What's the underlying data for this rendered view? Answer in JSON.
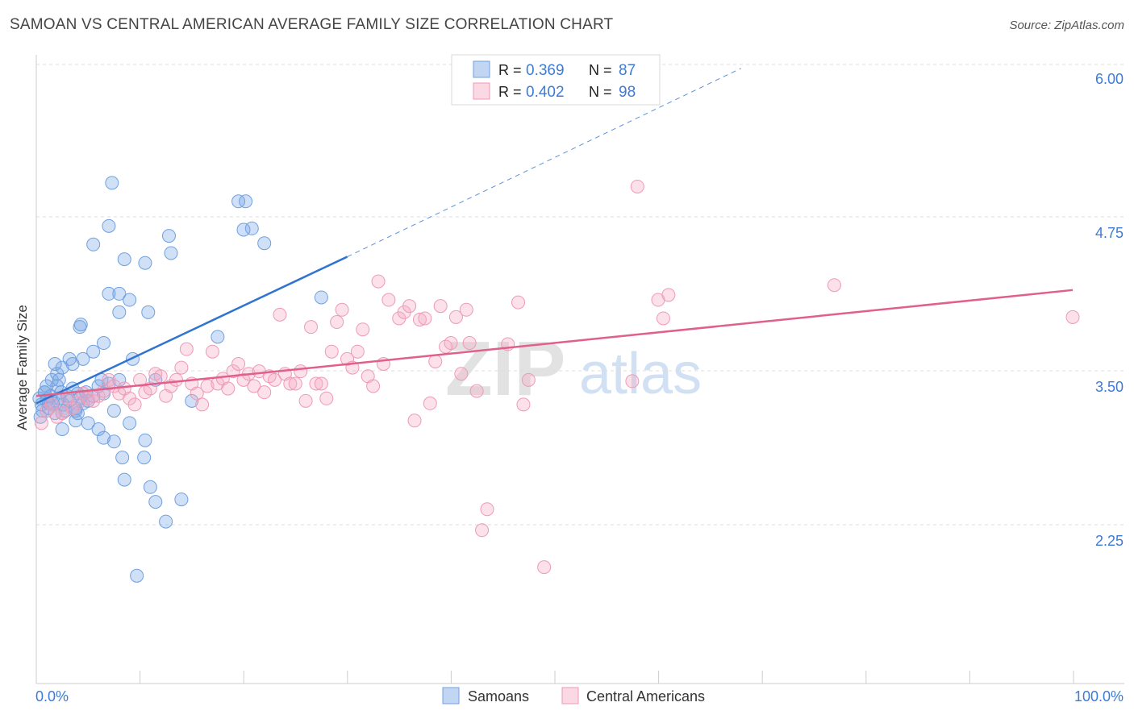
{
  "title": "SAMOAN VS CENTRAL AMERICAN AVERAGE FAMILY SIZE CORRELATION CHART",
  "source": "Source: ZipAtlas.com",
  "watermark": {
    "zip": "ZIP",
    "atlas": "atlas"
  },
  "colors": {
    "samoan": "#6fa0e0",
    "samoan_fill": "rgba(120,165,230,0.35)",
    "samoan_line": "#2f74d0",
    "central": "#ee9ab5",
    "central_fill": "rgba(245,170,195,0.35)",
    "central_line": "#e0608a",
    "axis_label": "#3d7bd6",
    "grid": "#dddddd"
  },
  "legend": {
    "rows": [
      {
        "r_label": "R =",
        "r_value": "0.369",
        "n_label": "N =",
        "n_value": "87"
      },
      {
        "r_label": "R =",
        "r_value": "0.402",
        "n_label": "N =",
        "n_value": "98"
      }
    ],
    "bottom": [
      "Samoans",
      "Central Americans"
    ]
  },
  "chart_data": {
    "type": "scatter",
    "title": "SAMOAN VS CENTRAL AMERICAN AVERAGE FAMILY SIZE CORRELATION CHART",
    "xlabel": "",
    "ylabel": "Average Family Size",
    "xlim": [
      0,
      100
    ],
    "ylim": [
      1.25,
      6.25
    ],
    "x_tick_labels": [
      "0.0%",
      "100.0%"
    ],
    "y_ticks": [
      2.25,
      3.5,
      4.75,
      6.0
    ],
    "y_tick_labels": [
      "2.25",
      "3.50",
      "4.75",
      "6.00"
    ],
    "grid": true,
    "legend_position": "top-center",
    "series": [
      {
        "name": "Samoans",
        "r": 0.369,
        "n": 87,
        "trend": {
          "x": [
            0,
            30
          ],
          "y": [
            3.36,
            4.55
          ],
          "dashed_to": [
            68,
            6.08
          ]
        },
        "points": [
          [
            0.3,
            3.4
          ],
          [
            0.5,
            3.35
          ],
          [
            0.6,
            3.3
          ],
          [
            0.8,
            3.45
          ],
          [
            1.0,
            3.38
          ],
          [
            1.2,
            3.32
          ],
          [
            1.4,
            3.42
          ],
          [
            1.6,
            3.36
          ],
          [
            1.8,
            3.28
          ],
          [
            2.0,
            3.5
          ],
          [
            2.2,
            3.4
          ],
          [
            2.4,
            3.45
          ],
          [
            2.6,
            3.35
          ],
          [
            2.8,
            3.3
          ],
          [
            3.0,
            3.42
          ],
          [
            3.2,
            3.38
          ],
          [
            3.5,
            3.48
          ],
          [
            3.8,
            3.32
          ],
          [
            4.0,
            3.44
          ],
          [
            4.2,
            3.4
          ],
          [
            4.5,
            3.36
          ],
          [
            4.8,
            3.45
          ],
          [
            5.0,
            3.38
          ],
          [
            5.5,
            3.42
          ],
          [
            6.0,
            3.5
          ],
          [
            6.5,
            3.44
          ],
          [
            7.0,
            3.52
          ],
          [
            0.4,
            3.25
          ],
          [
            1.0,
            3.5
          ],
          [
            1.5,
            3.55
          ],
          [
            2.0,
            3.6
          ],
          [
            2.5,
            3.65
          ],
          [
            1.8,
            3.68
          ],
          [
            2.2,
            3.55
          ],
          [
            3.2,
            3.72
          ],
          [
            3.5,
            3.68
          ],
          [
            4.5,
            3.72
          ],
          [
            5.5,
            3.78
          ],
          [
            6.5,
            3.85
          ],
          [
            4.2,
            3.98
          ],
          [
            4.3,
            4.0
          ],
          [
            3.8,
            3.3
          ],
          [
            5.0,
            3.2
          ],
          [
            6.0,
            3.15
          ],
          [
            8.0,
            3.55
          ],
          [
            7.5,
            3.3
          ],
          [
            2.5,
            3.15
          ],
          [
            3.8,
            3.22
          ],
          [
            9.0,
            3.2
          ],
          [
            6.5,
            3.08
          ],
          [
            7.5,
            3.05
          ],
          [
            10.5,
            3.06
          ],
          [
            8.3,
            2.92
          ],
          [
            10.4,
            2.92
          ],
          [
            8.5,
            2.74
          ],
          [
            11.0,
            2.68
          ],
          [
            11.5,
            2.56
          ],
          [
            14.0,
            2.58
          ],
          [
            12.5,
            2.4
          ],
          [
            9.7,
            1.96
          ],
          [
            7.0,
            4.25
          ],
          [
            8.0,
            4.1
          ],
          [
            8.0,
            4.25
          ],
          [
            10.8,
            4.1
          ],
          [
            9.0,
            4.2
          ],
          [
            10.5,
            4.5
          ],
          [
            5.5,
            4.65
          ],
          [
            8.5,
            4.53
          ],
          [
            12.8,
            4.72
          ],
          [
            13.0,
            4.58
          ],
          [
            7.0,
            4.8
          ],
          [
            7.3,
            5.15
          ],
          [
            19.5,
            5.0
          ],
          [
            20.2,
            5.0
          ],
          [
            20.8,
            4.78
          ],
          [
            20.0,
            4.77
          ],
          [
            22.0,
            4.66
          ],
          [
            27.5,
            4.22
          ],
          [
            17.5,
            3.9
          ],
          [
            9.3,
            3.72
          ],
          [
            6.3,
            3.55
          ],
          [
            15.0,
            3.38
          ],
          [
            11.5,
            3.55
          ],
          [
            4.0,
            3.28
          ],
          [
            2.5,
            3.28
          ],
          [
            0.8,
            3.45
          ],
          [
            1.2,
            3.36
          ]
        ]
      },
      {
        "name": "Central Americans",
        "r": 0.402,
        "n": 98,
        "trend": {
          "x": [
            0,
            100
          ],
          "y": [
            3.42,
            4.28
          ]
        },
        "points": [
          [
            0.5,
            3.2
          ],
          [
            1.0,
            3.3
          ],
          [
            1.5,
            3.35
          ],
          [
            2.0,
            3.25
          ],
          [
            2.5,
            3.28
          ],
          [
            3.0,
            3.4
          ],
          [
            3.5,
            3.32
          ],
          [
            4.0,
            3.36
          ],
          [
            4.5,
            3.44
          ],
          [
            5.0,
            3.4
          ],
          [
            5.5,
            3.38
          ],
          [
            6.0,
            3.42
          ],
          [
            6.5,
            3.46
          ],
          [
            7.0,
            3.55
          ],
          [
            7.5,
            3.5
          ],
          [
            8.0,
            3.44
          ],
          [
            8.5,
            3.48
          ],
          [
            9.0,
            3.4
          ],
          [
            9.5,
            3.35
          ],
          [
            10.0,
            3.55
          ],
          [
            10.5,
            3.45
          ],
          [
            11.0,
            3.48
          ],
          [
            11.5,
            3.6
          ],
          [
            12.0,
            3.58
          ],
          [
            12.5,
            3.42
          ],
          [
            13.0,
            3.5
          ],
          [
            13.5,
            3.55
          ],
          [
            14.0,
            3.65
          ],
          [
            14.5,
            3.8
          ],
          [
            15.0,
            3.52
          ],
          [
            15.5,
            3.44
          ],
          [
            16.0,
            3.35
          ],
          [
            16.5,
            3.5
          ],
          [
            17.0,
            3.78
          ],
          [
            17.5,
            3.52
          ],
          [
            18.0,
            3.56
          ],
          [
            18.5,
            3.48
          ],
          [
            19.0,
            3.62
          ],
          [
            19.5,
            3.68
          ],
          [
            20.0,
            3.55
          ],
          [
            20.5,
            3.6
          ],
          [
            21.0,
            3.5
          ],
          [
            21.5,
            3.62
          ],
          [
            22.0,
            3.45
          ],
          [
            22.5,
            3.58
          ],
          [
            23.0,
            3.55
          ],
          [
            23.5,
            4.08
          ],
          [
            24.0,
            3.6
          ],
          [
            24.5,
            3.52
          ],
          [
            25.0,
            3.52
          ],
          [
            25.5,
            3.62
          ],
          [
            26.0,
            3.38
          ],
          [
            26.5,
            3.98
          ],
          [
            27.0,
            3.52
          ],
          [
            27.5,
            3.52
          ],
          [
            28.0,
            3.4
          ],
          [
            28.5,
            3.78
          ],
          [
            29.0,
            4.02
          ],
          [
            29.5,
            4.12
          ],
          [
            30.0,
            3.72
          ],
          [
            30.5,
            3.65
          ],
          [
            31.0,
            3.78
          ],
          [
            31.5,
            3.96
          ],
          [
            32.0,
            3.58
          ],
          [
            32.5,
            3.5
          ],
          [
            33.0,
            4.35
          ],
          [
            33.5,
            3.68
          ],
          [
            34.0,
            4.2
          ],
          [
            35.0,
            4.05
          ],
          [
            35.5,
            4.1
          ],
          [
            36.0,
            4.15
          ],
          [
            36.5,
            3.22
          ],
          [
            37.0,
            4.04
          ],
          [
            37.5,
            4.05
          ],
          [
            38.0,
            3.36
          ],
          [
            38.5,
            3.7
          ],
          [
            39.0,
            4.15
          ],
          [
            39.5,
            3.82
          ],
          [
            40.0,
            3.85
          ],
          [
            40.5,
            4.06
          ],
          [
            41.0,
            3.6
          ],
          [
            41.5,
            4.12
          ],
          [
            41.8,
            3.85
          ],
          [
            42.5,
            3.46
          ],
          [
            43.5,
            2.5
          ],
          [
            43.0,
            2.33
          ],
          [
            45.5,
            3.84
          ],
          [
            46.5,
            4.18
          ],
          [
            47.5,
            3.55
          ],
          [
            47.0,
            3.35
          ],
          [
            49.0,
            2.03
          ],
          [
            57.5,
            3.54
          ],
          [
            58.0,
            5.12
          ],
          [
            60.0,
            4.2
          ],
          [
            60.5,
            4.05
          ],
          [
            61.0,
            4.24
          ],
          [
            77.0,
            4.32
          ],
          [
            100.0,
            4.06
          ]
        ]
      }
    ]
  }
}
